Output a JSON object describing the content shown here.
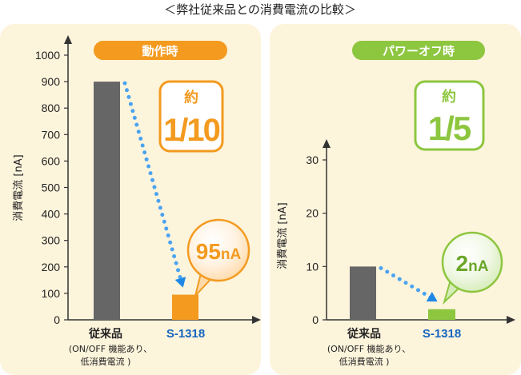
{
  "title": "＜弊社従来品との消費電流の比較＞",
  "colors": {
    "panel_bg": "#fdf4dc",
    "orange": "#f39a1f",
    "green": "#8dc63f",
    "gray_bar": "#666666",
    "s1318_text": "#1565c0",
    "arrow_blue": "#1e88e5"
  },
  "chart_data": [
    {
      "type": "bar",
      "title": "動作時",
      "ylabel": "消費電流 [nA]",
      "ylim": [
        0,
        1000
      ],
      "yticks": [
        "0",
        "100",
        "200",
        "300",
        "400",
        "500",
        "600",
        "700",
        "800",
        "900",
        "1000"
      ],
      "categories": [
        "従来品",
        "S-1318"
      ],
      "values": [
        900,
        95
      ],
      "category_note": [
        "(ON/OFF 機能あり、",
        "低消費電流 )"
      ],
      "badge": {
        "top": "約",
        "num": "1/10"
      },
      "bubble": {
        "value": "95",
        "unit": "nA"
      }
    },
    {
      "type": "bar",
      "title": "パワーオフ時",
      "ylabel": "消費電流 [nA]",
      "ylim": [
        0,
        30
      ],
      "yticks": [
        "0",
        "10",
        "20",
        "30"
      ],
      "categories": [
        "従来品",
        "S-1318"
      ],
      "values": [
        10,
        2
      ],
      "category_note": [
        "(ON/OFF 機能あり、",
        "低消費電流 )"
      ],
      "badge": {
        "top": "約",
        "num": "1/5"
      },
      "bubble": {
        "value": "2",
        "unit": "nA"
      }
    }
  ]
}
